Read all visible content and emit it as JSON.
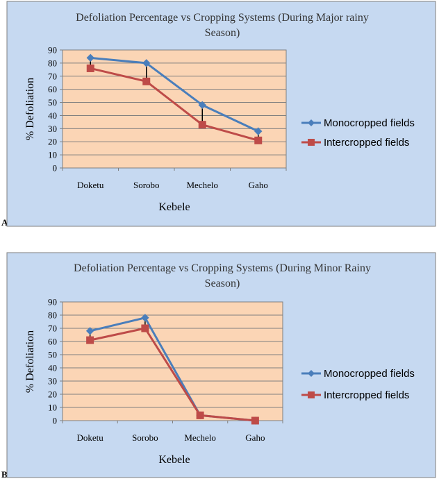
{
  "panel_labels": [
    "A",
    "B"
  ],
  "chart_data": [
    {
      "type": "line",
      "title_line1": "Defoliation Percentage vs Cropping Systems (During Major rainy",
      "title_line2": "Season)",
      "xlabel": "Kebele",
      "ylabel": "% Defoliation",
      "categories": [
        "Doketu",
        "Sorobo",
        "Mechelo",
        "Gaho"
      ],
      "ylim": [
        0,
        90
      ],
      "yticks": [
        0,
        10,
        20,
        30,
        40,
        50,
        60,
        70,
        80,
        90
      ],
      "grid": true,
      "legend_position": "right",
      "series": [
        {
          "name": "Monocropped fields",
          "values": [
            84,
            80,
            48,
            28
          ],
          "color": "#4a7ebb",
          "marker": "diamond"
        },
        {
          "name": "Intercropped fields",
          "values": [
            76,
            66,
            33,
            21
          ],
          "color": "#be4b48",
          "marker": "square"
        }
      ],
      "plot_background": "#fbd5b5",
      "chart_background": "#c6d9f1"
    },
    {
      "type": "line",
      "title_line1": "Defoliation Percentage vs Cropping Systems (During Minor Rainy",
      "title_line2": "Season)",
      "xlabel": "Kebele",
      "ylabel": "% Defoliation",
      "categories": [
        "Doketu",
        "Sorobo",
        "Mechelo",
        "Gaho"
      ],
      "ylim": [
        0,
        90
      ],
      "yticks": [
        0,
        10,
        20,
        30,
        40,
        50,
        60,
        70,
        80,
        90
      ],
      "grid": true,
      "legend_position": "right",
      "series": [
        {
          "name": "Monocropped fields",
          "values": [
            68,
            78,
            4,
            0
          ],
          "color": "#4a7ebb",
          "marker": "diamond"
        },
        {
          "name": "Intercropped fields",
          "values": [
            61,
            70,
            4,
            0
          ],
          "color": "#be4b48",
          "marker": "square"
        }
      ],
      "plot_background": "#fbd5b5",
      "chart_background": "#c6d9f1"
    }
  ]
}
